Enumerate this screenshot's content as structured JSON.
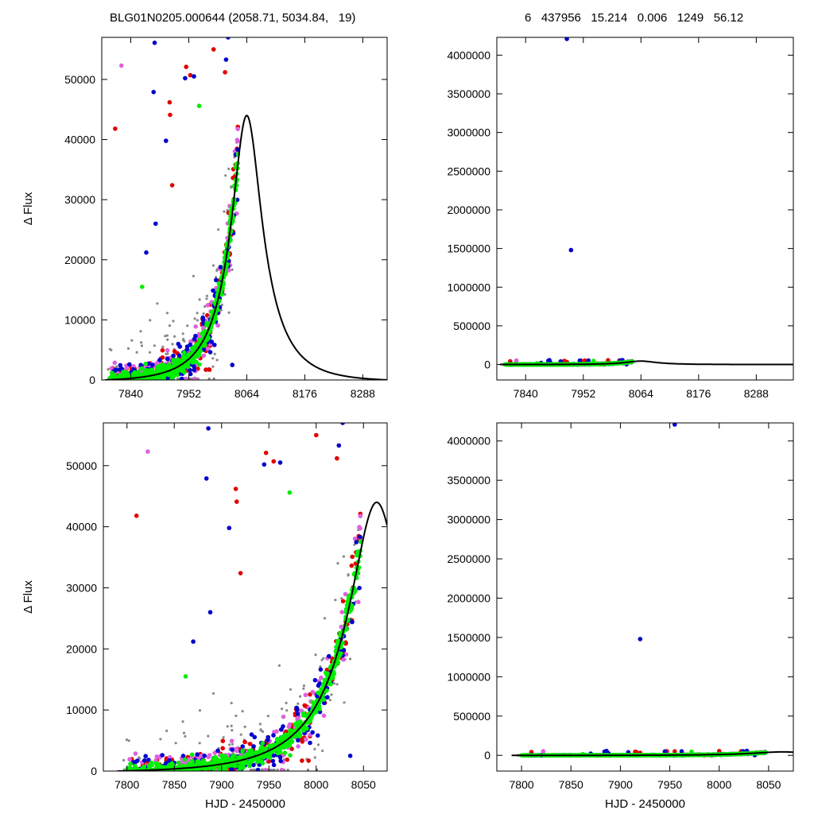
{
  "header": {
    "left": "BLG01N0205.000644 (2058.71, 5034.84,   19)",
    "right": "6   437956   15.214   0.006   1249   56.12"
  },
  "colors": {
    "black": "#000000",
    "gray": "#888888",
    "red": "#e00000",
    "blue": "#0000cc",
    "green": "#00ee00",
    "magenta": "#e060e0"
  },
  "chart_data": [
    {
      "id": "top-left",
      "type": "scatter",
      "title": "",
      "xlabel": "",
      "ylabel": "Δ Flux",
      "xlim": [
        7784,
        8335
      ],
      "ylim": [
        0,
        57000
      ],
      "xticks": [
        7840,
        7952,
        8064,
        8176,
        8288
      ],
      "yticks": [
        0,
        10000,
        20000,
        30000,
        40000,
        50000
      ],
      "legend": "none",
      "grid": false,
      "model": "microlensing fit, peak ~44000 at HJD 8064"
    },
    {
      "id": "top-right",
      "type": "scatter",
      "title": "",
      "xlabel": "",
      "ylabel": "",
      "xlim": [
        7784,
        8360
      ],
      "ylim": [
        -200000,
        4230000
      ],
      "xticks": [
        7840,
        7952,
        8064,
        8176,
        8288
      ],
      "yticks": [
        0,
        500000,
        1000000,
        1500000,
        2000000,
        2500000,
        3000000,
        3500000,
        4000000
      ],
      "legend": "none",
      "grid": false,
      "outliers": [
        [
          7920,
          4210000
        ],
        [
          7928,
          1480000
        ]
      ]
    },
    {
      "id": "bottom-left",
      "type": "scatter",
      "title": "",
      "xlabel": "HJD - 2450000",
      "ylabel": "Δ Flux",
      "xlim": [
        7775,
        8075
      ],
      "ylim": [
        0,
        57000
      ],
      "xticks": [
        7800,
        7850,
        7900,
        7950,
        8000,
        8050
      ],
      "yticks": [
        0,
        10000,
        20000,
        30000,
        40000,
        50000
      ],
      "legend": "none",
      "grid": false
    },
    {
      "id": "bottom-right",
      "type": "scatter",
      "title": "",
      "xlabel": "HJD - 2450000",
      "ylabel": "",
      "xlim": [
        7775,
        8075
      ],
      "ylim": [
        -200000,
        4230000
      ],
      "xticks": [
        7800,
        7850,
        7900,
        7950,
        8000,
        8050
      ],
      "yticks": [
        0,
        500000,
        1000000,
        1500000,
        2000000,
        2500000,
        3000000,
        3500000,
        4000000
      ],
      "legend": "none",
      "grid": false,
      "outliers": [
        [
          7955,
          4210000
        ],
        [
          7920,
          1480000
        ]
      ]
    }
  ]
}
